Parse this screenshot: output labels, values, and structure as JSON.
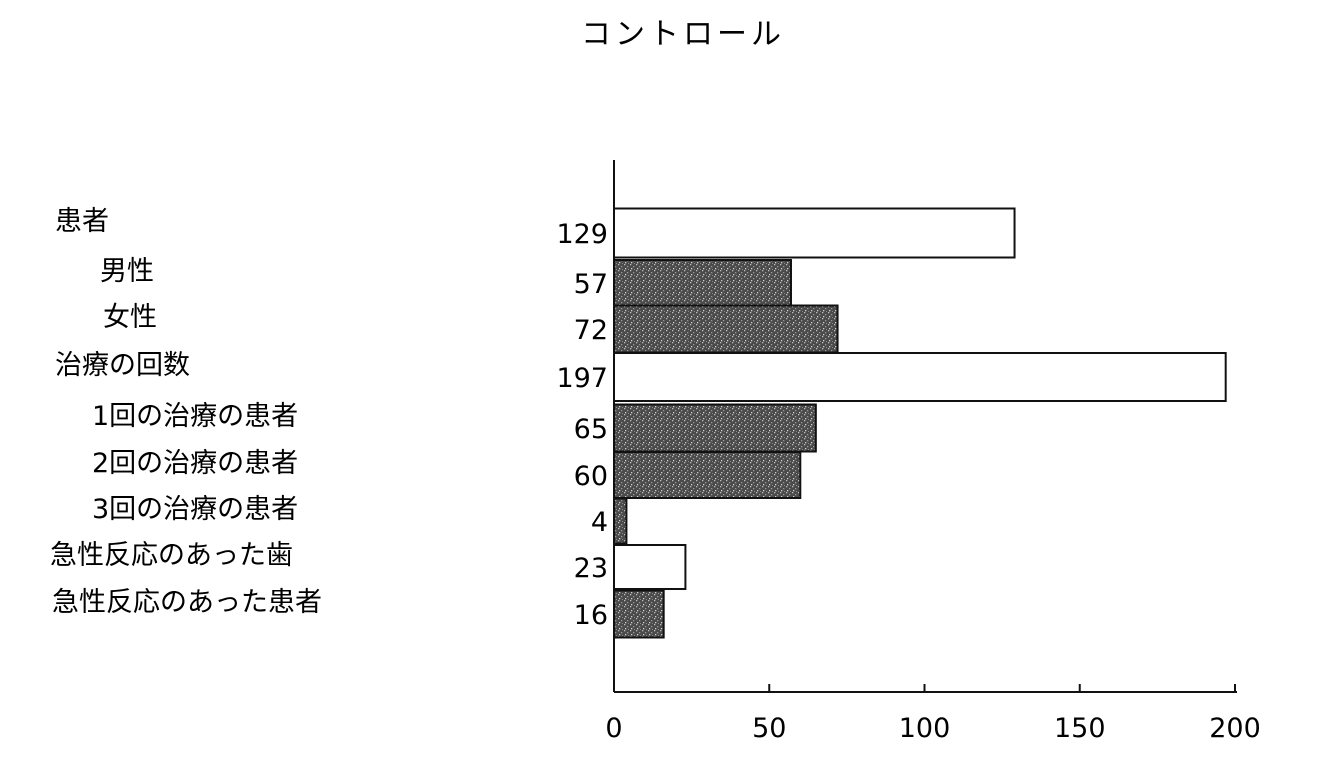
{
  "chart_data": {
    "type": "bar",
    "orientation": "horizontal",
    "title": "コントロール",
    "xlabel": "",
    "ylabel": "",
    "xlim": [
      0,
      200
    ],
    "xticks": [
      "0",
      "50",
      "100",
      "150",
      "200"
    ],
    "grid": false,
    "legend": "none",
    "categories": [
      "患者",
      "男性",
      "女性",
      "治療の回数",
      "1回の治療の患者",
      "2回の治療の患者",
      "3回の治療の患者",
      "急性反応のあった歯",
      "急性反応のあった患者"
    ],
    "values": [
      129,
      57,
      72,
      197,
      65,
      60,
      4,
      23,
      16
    ],
    "value_labels": [
      "129",
      "57",
      "72",
      "197",
      "65",
      "60",
      "4",
      "23",
      "16"
    ],
    "bar_styles": [
      "open",
      "stippled",
      "stippled",
      "open",
      "stippled",
      "stippled",
      "stippled",
      "open",
      "stippled"
    ]
  }
}
